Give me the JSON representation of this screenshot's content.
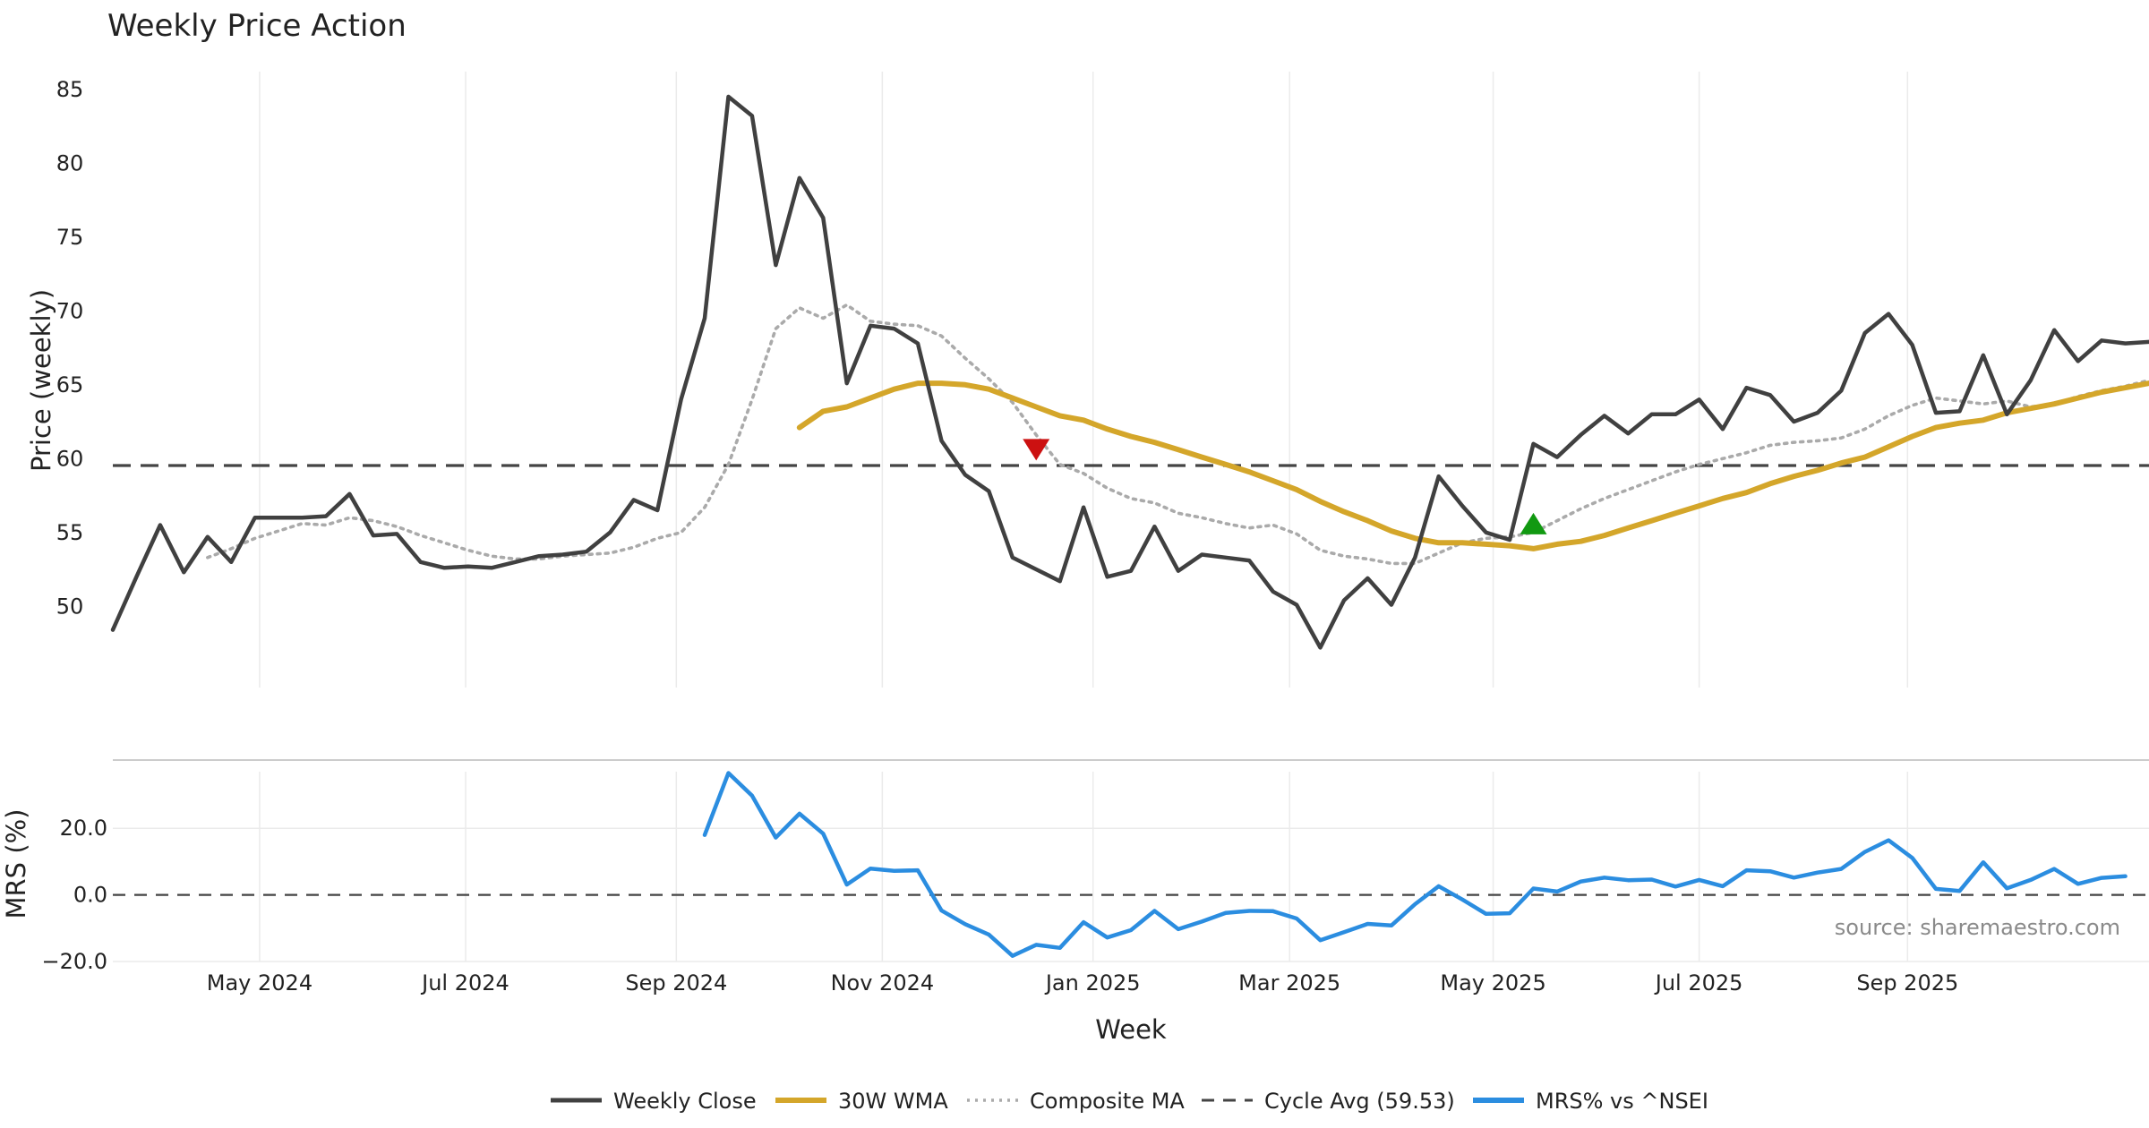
{
  "chart_data": {
    "type": "line",
    "title": "Weekly Price Action",
    "source_note": "source: sharemaestro.com",
    "colors": {
      "close": "#404040",
      "wma": "#d4a62a",
      "composite": "#aaaaaa",
      "cycle": "#444444",
      "mrs": "#2b8de0",
      "sell_marker": "#cc1111",
      "buy_marker": "#119911"
    },
    "price_panel": {
      "ylabel": "Price (weekly)",
      "ylim": [
        44.5,
        86.5
      ],
      "yticks": [
        50,
        55,
        60,
        65,
        70,
        75,
        80,
        85
      ],
      "xlim": [
        0,
        86
      ],
      "series": [
        {
          "name": "Weekly Close",
          "style": "solid",
          "start_week": 0,
          "values": [
            48.4,
            52.0,
            55.5,
            52.3,
            54.7,
            53.0,
            56.0,
            56.0,
            56.0,
            56.1,
            57.6,
            54.8,
            54.9,
            53.0,
            52.6,
            52.7,
            52.6,
            53.0,
            53.4,
            53.5,
            53.7,
            55.0,
            57.2,
            56.5,
            64.0,
            69.5,
            84.5,
            83.2,
            73.1,
            79.0,
            76.3,
            65.1,
            69.0,
            68.8,
            67.8,
            61.2,
            58.9,
            57.8,
            53.3,
            52.5,
            51.7,
            56.7,
            52.0,
            52.4,
            55.4,
            52.4,
            53.5,
            53.3,
            53.1,
            51.0,
            50.1,
            47.2,
            50.4,
            51.9,
            50.1,
            53.3,
            58.8,
            56.8,
            55.0,
            54.5,
            61.0,
            60.1,
            61.6,
            62.9,
            61.7,
            63.0,
            63.0,
            64.0,
            62.0,
            64.8,
            64.3,
            62.5,
            63.1,
            64.6,
            68.5,
            69.8,
            67.7,
            63.1,
            63.2,
            67.0,
            63.0,
            65.3,
            68.7,
            66.6,
            68.0,
            67.8,
            67.9
          ]
        },
        {
          "name": "30W WMA",
          "style": "thick",
          "start_week": 29,
          "values": [
            62.1,
            63.2,
            63.5,
            64.1,
            64.7,
            65.1,
            65.1,
            65.0,
            64.7,
            64.1,
            63.5,
            62.9,
            62.6,
            62.0,
            61.5,
            61.1,
            60.6,
            60.1,
            59.6,
            59.1,
            58.5,
            57.9,
            57.1,
            56.4,
            55.8,
            55.1,
            54.6,
            54.3,
            54.3,
            54.2,
            54.1,
            53.9,
            54.2,
            54.4,
            54.8,
            55.3,
            55.8,
            56.3,
            56.8,
            57.3,
            57.7,
            58.3,
            58.8,
            59.2,
            59.7,
            60.1,
            60.8,
            61.5,
            62.1,
            62.4,
            62.6,
            63.1,
            63.4,
            63.7,
            64.1,
            64.5,
            64.8,
            65.1
          ]
        },
        {
          "name": "Composite MA",
          "style": "dotted",
          "start_week": 4,
          "values": [
            53.3,
            53.9,
            54.6,
            55.1,
            55.6,
            55.5,
            56.0,
            55.8,
            55.4,
            54.8,
            54.3,
            53.8,
            53.4,
            53.2,
            53.2,
            53.4,
            53.5,
            53.6,
            54.0,
            54.6,
            55.0,
            56.7,
            59.6,
            64.0,
            68.8,
            70.2,
            69.5,
            70.4,
            69.3,
            69.1,
            69.0,
            68.3,
            66.8,
            65.4,
            63.8,
            61.6,
            59.6,
            59.0,
            58.0,
            57.3,
            57.0,
            56.3,
            56.0,
            55.6,
            55.3,
            55.5,
            54.9,
            53.8,
            53.4,
            53.2,
            52.9,
            52.9,
            53.6,
            54.3,
            54.6,
            54.7,
            55.0,
            55.8,
            56.6,
            57.3,
            57.9,
            58.5,
            59.1,
            59.6,
            60.0,
            60.4,
            60.9,
            61.1,
            61.2,
            61.4,
            62.0,
            62.9,
            63.6,
            64.1,
            63.9,
            63.7,
            63.9,
            63.5,
            63.7,
            64.2,
            64.6,
            64.9,
            65.3
          ]
        }
      ],
      "reference_line": {
        "name": "Cycle Avg (59.53)",
        "value": 59.53,
        "style": "dashed"
      },
      "markers": [
        {
          "type": "sell",
          "shape": "triangle-down",
          "x_week": 39,
          "y": 60.6
        },
        {
          "type": "buy",
          "shape": "triangle-up",
          "x_week": 60,
          "y": 55.6
        }
      ]
    },
    "mrs_panel": {
      "ylabel": "MRS (%)",
      "ylim": [
        -20.0,
        37.0
      ],
      "yticks": [
        20.0,
        0.0,
        -20.0
      ],
      "tick_labels": [
        "20.0",
        "0.0",
        "−20.0"
      ],
      "zero_line": "dashed",
      "series": [
        {
          "name": "MRS% vs ^NSEI",
          "start_week": 25,
          "values": [
            18,
            36.6,
            29.8,
            17.2,
            24.4,
            18.4,
            3.1,
            7.9,
            7.2,
            7.4,
            -4.7,
            -8.8,
            -11.9,
            -18.3,
            -15,
            -15.9,
            -8.2,
            -12.8,
            -10.6,
            -4.8,
            -10.3,
            -8,
            -5.4,
            -4.8,
            -4.9,
            -7.1,
            -13.6,
            -11.2,
            -8.7,
            -9.2,
            -2.8,
            2.6,
            -1.4,
            -5.7,
            -5.5,
            1.9,
            1.0,
            4.0,
            5.2,
            4.4,
            4.6,
            2.5,
            4.5,
            2.6,
            7.4,
            7.1,
            5.2,
            6.7,
            7.8,
            12.9,
            16.4,
            11.1,
            1.8,
            1.2,
            9.8,
            2.0,
            4.5,
            7.8,
            3.3,
            5.1,
            5.6
          ]
        }
      ]
    },
    "x_axis": {
      "xlabel": "Week",
      "ticks": [
        {
          "label": "May 2024",
          "week": 6.2
        },
        {
          "label": "Jul 2024",
          "week": 14.9
        },
        {
          "label": "Sep 2024",
          "week": 23.8
        },
        {
          "label": "Nov 2024",
          "week": 32.5
        },
        {
          "label": "Jan 2025",
          "week": 41.4
        },
        {
          "label": "Mar 2025",
          "week": 49.7
        },
        {
          "label": "May 2025",
          "week": 58.3
        },
        {
          "label": "Jul 2025",
          "week": 67.0
        },
        {
          "label": "Sep 2025",
          "week": 75.8
        }
      ]
    },
    "grid": true,
    "legend": {
      "position": "bottom-center",
      "items": [
        {
          "label": "Weekly Close",
          "style": "solid"
        },
        {
          "label": "30W WMA",
          "style": "thick"
        },
        {
          "label": "Composite MA",
          "style": "dotted"
        },
        {
          "label": "Cycle Avg (59.53)",
          "style": "dashed"
        },
        {
          "label": "MRS% vs ^NSEI",
          "style": "mrs"
        }
      ]
    }
  }
}
